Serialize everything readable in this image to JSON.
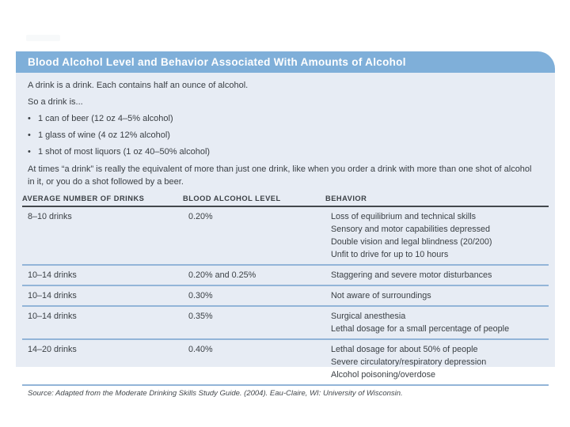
{
  "card": {
    "title": "Blood Alcohol Level and Behavior Associated With Amounts of Alcohol",
    "header_bg": "#7fafd9",
    "body_bg": "#e7ecf4",
    "separator_color": "#93b5d8",
    "header_rule_color": "#43484d",
    "text_color": "#3b4045"
  },
  "intro": {
    "line1": "A drink is a drink. Each contains half an ounce of alcohol.",
    "line2": "So a drink is...",
    "bullets": [
      "1 can of beer (12 oz 4–5% alcohol)",
      "1 glass of wine (4 oz 12% alcohol)",
      "1 shot of most liquors (1 oz 40–50% alcohol)"
    ],
    "note": "At times “a drink” is really the equivalent of more than just one drink, like when you order a drink with more than one shot of alcohol in it, or you do a shot followed by a beer."
  },
  "table": {
    "columns": {
      "drinks": "AVERAGE NUMBER OF DRINKS",
      "bac": "BLOOD ALCOHOL LEVEL",
      "behavior": "BEHAVIOR"
    },
    "rows": [
      {
        "drinks": "8–10 drinks",
        "bac": "0.20%",
        "behaviors": [
          "Loss of equilibrium and technical skills",
          "Sensory and motor capabilities depressed",
          "Double vision and legal blindness (20/200)",
          "Unfit to drive for up to 10 hours"
        ]
      },
      {
        "drinks": "10–14 drinks",
        "bac": "0.20% and 0.25%",
        "behaviors": [
          "Staggering and severe motor disturbances"
        ]
      },
      {
        "drinks": "10–14 drinks",
        "bac": "0.30%",
        "behaviors": [
          "Not aware of surroundings"
        ]
      },
      {
        "drinks": "10–14 drinks",
        "bac": "0.35%",
        "behaviors": [
          "Surgical anesthesia",
          "Lethal dosage for a small percentage of people"
        ]
      },
      {
        "drinks": "14–20 drinks",
        "bac": "0.40%",
        "behaviors": [
          "Lethal dosage for about 50% of people",
          "Severe circulatory/respiratory depression",
          "Alcohol poisoning/overdose"
        ]
      }
    ],
    "source": "Source: Adapted from the Moderate Drinking Skills Study Guide. (2004). Eau-Claire, WI: University of Wisconsin."
  }
}
